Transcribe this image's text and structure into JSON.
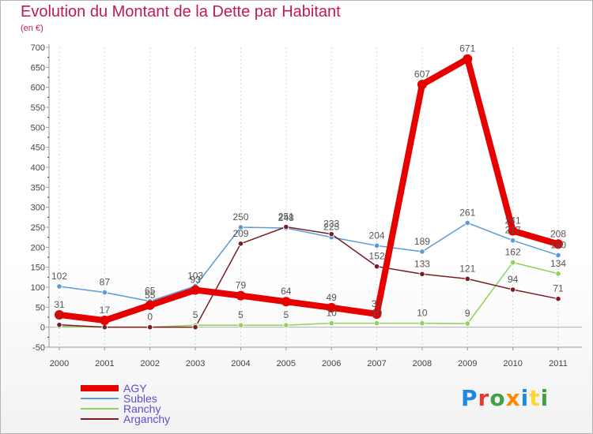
{
  "title": "Evolution du Montant de la Dette par Habitant",
  "subtitle": "(en €)",
  "logo": {
    "text": "Proxiti",
    "letter_colors": [
      "#1e88e5",
      "#e53935",
      "#43a047",
      "#fb8c00",
      "#1e88e5",
      "#fdd835",
      "#43a047"
    ]
  },
  "chart_data": {
    "type": "line",
    "title": "Evolution du Montant de la Dette par Habitant",
    "ylabel": "(en €)",
    "xlabel": "",
    "categories": [
      "2000",
      "2001",
      "2002",
      "2003",
      "2004",
      "2005",
      "2006",
      "2007",
      "2008",
      "2009",
      "2010",
      "2011"
    ],
    "ylim": [
      -50,
      700
    ],
    "yticks": [
      -50,
      0,
      50,
      100,
      150,
      200,
      250,
      300,
      350,
      400,
      450,
      500,
      550,
      600,
      650,
      700
    ],
    "grid": "vertical-only",
    "legend_position": "bottom-left",
    "series": [
      {
        "name": "Subles",
        "color": "#5b9bd5",
        "width": 1.5,
        "values": [
          102,
          87,
          65,
          103,
          250,
          248,
          225,
          204,
          189,
          261,
          217,
          180
        ],
        "labels": [
          "102",
          "87",
          "65",
          "103",
          "250",
          "248",
          "225",
          "204",
          "189",
          "261",
          "217",
          "180"
        ]
      },
      {
        "name": "Ranchy",
        "color": "#8fd15a",
        "width": 1.5,
        "values": [
          2,
          0,
          0,
          5,
          5,
          5,
          10,
          10,
          10,
          9,
          162,
          134
        ],
        "labels": [
          "2",
          "",
          "0",
          "5",
          "5",
          "5",
          "10",
          "10",
          "10",
          "9",
          "162",
          "134"
        ]
      },
      {
        "name": "Arganchy",
        "color": "#7b1c24",
        "width": 1.5,
        "values": [
          6,
          0,
          0,
          0,
          209,
          251,
          233,
          152,
          133,
          121,
          94,
          71
        ],
        "labels": [
          "",
          "",
          "",
          "",
          "209",
          "251",
          "233",
          "152",
          "133",
          "121",
          "94",
          "71"
        ]
      },
      {
        "name": "AGY",
        "color": "#e60000",
        "width": 8,
        "values": [
          31,
          17,
          55,
          93,
          79,
          64,
          49,
          33,
          607,
          671,
          241,
          208
        ],
        "labels": [
          "31",
          "17",
          "55",
          "93",
          "79",
          "64",
          "49",
          "33",
          "607",
          "671",
          "241",
          "208"
        ]
      }
    ],
    "legend": [
      {
        "name": "AGY",
        "color": "#e60000",
        "width": 8
      },
      {
        "name": "Subles",
        "color": "#5b9bd5",
        "width": 1.5
      },
      {
        "name": "Ranchy",
        "color": "#8fd15a",
        "width": 1.5
      },
      {
        "name": "Arganchy",
        "color": "#7b1c24",
        "width": 1.5
      }
    ]
  }
}
